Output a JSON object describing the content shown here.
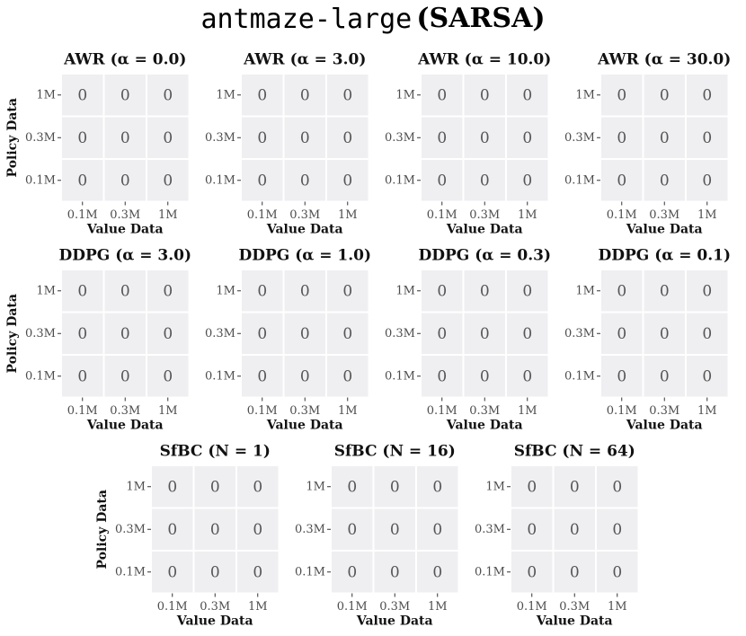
{
  "title": [
    "antmaze-large",
    "(SARSA)"
  ],
  "chart_data": [
    {
      "type": "heatmap",
      "title": "AWR (α = 0.0)",
      "x_label": "Value Data",
      "y_label": "Policy Data",
      "x": [
        "0.1M",
        "0.3M",
        "1M"
      ],
      "y": [
        "0.1M",
        "0.3M",
        "1M"
      ],
      "values": [
        [
          0,
          0,
          0
        ],
        [
          0,
          0,
          0
        ],
        [
          0,
          0,
          0
        ]
      ],
      "color": "#efeff2"
    },
    {
      "type": "heatmap",
      "title": "AWR (α = 3.0)",
      "x_label": "Value Data",
      "x": [
        "0.1M",
        "0.3M",
        "1M"
      ],
      "y": [
        "0.1M",
        "0.3M",
        "1M"
      ],
      "values": [
        [
          0,
          0,
          0
        ],
        [
          0,
          0,
          0
        ],
        [
          0,
          0,
          0
        ]
      ],
      "color": "#efeff2"
    },
    {
      "type": "heatmap",
      "title": "AWR (α = 10.0)",
      "x_label": "Value Data",
      "x": [
        "0.1M",
        "0.3M",
        "1M"
      ],
      "y": [
        "0.1M",
        "0.3M",
        "1M"
      ],
      "values": [
        [
          0,
          0,
          0
        ],
        [
          0,
          0,
          0
        ],
        [
          0,
          0,
          0
        ]
      ],
      "color": "#efeff2"
    },
    {
      "type": "heatmap",
      "title": "AWR (α = 30.0)",
      "x_label": "Value Data",
      "x": [
        "0.1M",
        "0.3M",
        "1M"
      ],
      "y": [
        "0.1M",
        "0.3M",
        "1M"
      ],
      "values": [
        [
          0,
          0,
          0
        ],
        [
          0,
          0,
          0
        ],
        [
          0,
          0,
          0
        ]
      ],
      "color": "#efeff2"
    },
    {
      "type": "heatmap",
      "title": "DDPG (α = 3.0)",
      "x_label": "Value Data",
      "y_label": "Policy Data",
      "x": [
        "0.1M",
        "0.3M",
        "1M"
      ],
      "y": [
        "0.1M",
        "0.3M",
        "1M"
      ],
      "values": [
        [
          0,
          0,
          0
        ],
        [
          0,
          0,
          0
        ],
        [
          0,
          0,
          0
        ]
      ],
      "color": "#efeff2"
    },
    {
      "type": "heatmap",
      "title": "DDPG (α = 1.0)",
      "x_label": "Value Data",
      "x": [
        "0.1M",
        "0.3M",
        "1M"
      ],
      "y": [
        "0.1M",
        "0.3M",
        "1M"
      ],
      "values": [
        [
          0,
          0,
          0
        ],
        [
          0,
          0,
          0
        ],
        [
          0,
          0,
          0
        ]
      ],
      "color": "#efeff2"
    },
    {
      "type": "heatmap",
      "title": "DDPG (α = 0.3)",
      "x_label": "Value Data",
      "x": [
        "0.1M",
        "0.3M",
        "1M"
      ],
      "y": [
        "0.1M",
        "0.3M",
        "1M"
      ],
      "values": [
        [
          0,
          0,
          0
        ],
        [
          0,
          0,
          0
        ],
        [
          0,
          0,
          0
        ]
      ],
      "color": "#efeff2"
    },
    {
      "type": "heatmap",
      "title": "DDPG (α = 0.1)",
      "x_label": "Value Data",
      "x": [
        "0.1M",
        "0.3M",
        "1M"
      ],
      "y": [
        "0.1M",
        "0.3M",
        "1M"
      ],
      "values": [
        [
          0,
          0,
          0
        ],
        [
          0,
          0,
          0
        ],
        [
          0,
          0,
          0
        ]
      ],
      "color": "#efeff2"
    },
    {
      "type": "heatmap",
      "title": "SfBC (N = 1)",
      "x_label": "Value Data",
      "y_label": "Policy Data",
      "x": [
        "0.1M",
        "0.3M",
        "1M"
      ],
      "y": [
        "0.1M",
        "0.3M",
        "1M"
      ],
      "values": [
        [
          0,
          0,
          0
        ],
        [
          0,
          0,
          0
        ],
        [
          0,
          0,
          0
        ]
      ],
      "color": "#efeff2"
    },
    {
      "type": "heatmap",
      "title": "SfBC (N = 16)",
      "x_label": "Value Data",
      "x": [
        "0.1M",
        "0.3M",
        "1M"
      ],
      "y": [
        "0.1M",
        "0.3M",
        "1M"
      ],
      "values": [
        [
          0,
          0,
          0
        ],
        [
          0,
          0,
          0
        ],
        [
          0,
          0,
          0
        ]
      ],
      "color": "#efeff2"
    },
    {
      "type": "heatmap",
      "title": "SfBC (N = 64)",
      "x_label": "Value Data",
      "x": [
        "0.1M",
        "0.3M",
        "1M"
      ],
      "y": [
        "0.1M",
        "0.3M",
        "1M"
      ],
      "values": [
        [
          0,
          0,
          0
        ],
        [
          0,
          0,
          0
        ],
        [
          0,
          0,
          0
        ]
      ],
      "color": "#efeff2"
    }
  ]
}
